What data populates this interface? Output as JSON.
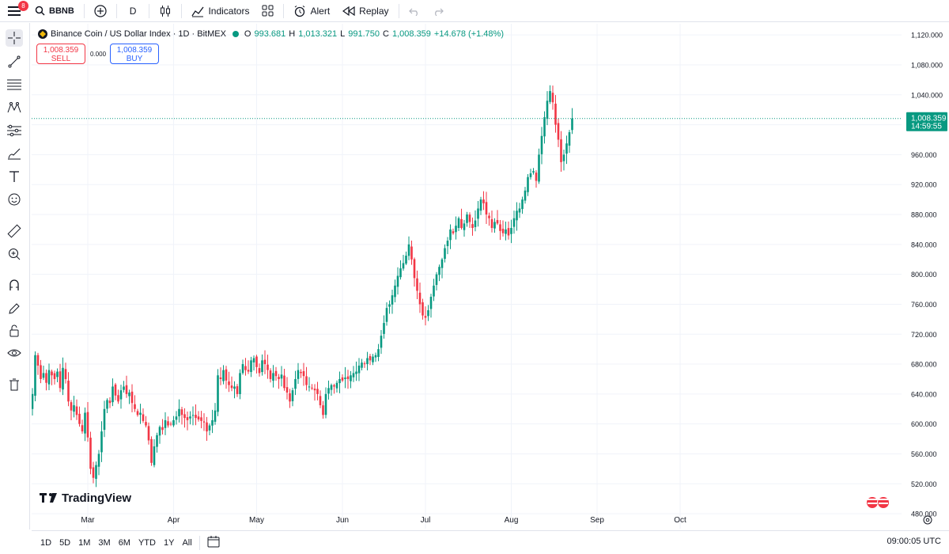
{
  "topbar": {
    "menu_badge": "8",
    "symbol": "BBNB",
    "interval": "D",
    "indicators_label": "Indicators",
    "alert_label": "Alert",
    "replay_label": "Replay"
  },
  "legend": {
    "title": "Binance Coin / US Dollar Index · 1D · BitMEX",
    "open_label": "O",
    "open": "993.681",
    "high_label": "H",
    "high": "1,013.321",
    "low_label": "L",
    "low": "991.750",
    "close_label": "C",
    "close": "1,008.359",
    "change": "+14.678 (+1.48%)"
  },
  "trade": {
    "sell_price": "1,008.359",
    "sell_label": "SELL",
    "spread": "0.000",
    "buy_price": "1,008.359",
    "buy_label": "BUY"
  },
  "price_tag": {
    "price": "1,008.359",
    "countdown": "14:59:55",
    "color": "#089981"
  },
  "watermark": "TradingView",
  "bottombar": {
    "ranges": [
      "1D",
      "5D",
      "1M",
      "3M",
      "6M",
      "YTD",
      "1Y",
      "All"
    ],
    "time": "09:00:05 UTC"
  },
  "colors": {
    "up": "#089981",
    "down": "#f23645",
    "grid": "#f0f3fa"
  },
  "chart_data": {
    "type": "candlestick",
    "title": "Binance Coin / US Dollar Index · 1D · BitMEX",
    "y_ticks": [
      "1,120.000",
      "1,080.000",
      "1,040.000",
      "1,000.000",
      "960.000",
      "920.000",
      "880.000",
      "840.000",
      "800.000",
      "760.000",
      "720.000",
      "680.000",
      "640.000",
      "600.000",
      "560.000",
      "520.000",
      "480.000"
    ],
    "y_tick_values": [
      1120,
      1080,
      1040,
      1000,
      960,
      920,
      880,
      840,
      800,
      760,
      720,
      680,
      640,
      600,
      560,
      520,
      480
    ],
    "ylim": [
      460,
      1135
    ],
    "x_labels": [
      "Mar",
      "Apr",
      "May",
      "Jun",
      "Jul",
      "Aug",
      "Sep",
      "Oct"
    ],
    "x_label_dates": [
      "2025-03-01",
      "2025-04-01",
      "2025-05-01",
      "2025-06-01",
      "2025-07-01",
      "2025-08-01",
      "2025-09-01",
      "2025-10-01"
    ],
    "first_date": "2025-02-09",
    "last_price": 1008.359,
    "closes": [
      640,
      692,
      678,
      660,
      668,
      655,
      672,
      665,
      660,
      670,
      648,
      675,
      660,
      630,
      618,
      625,
      612,
      600,
      590,
      615,
      582,
      540,
      528,
      545,
      560,
      590,
      620,
      632,
      628,
      650,
      638,
      630,
      645,
      650,
      640,
      642,
      628,
      620,
      612,
      615,
      604,
      598,
      578,
      548,
      570,
      585,
      596,
      592,
      605,
      598,
      600,
      605,
      610,
      620,
      612,
      608,
      605,
      610,
      612,
      608,
      606,
      604,
      602,
      590,
      598,
      605,
      618,
      665,
      660,
      672,
      658,
      652,
      648,
      650,
      640,
      668,
      680,
      672,
      670,
      685,
      688,
      676,
      668,
      685,
      680,
      672,
      660,
      668,
      664,
      660,
      666,
      648,
      642,
      630,
      645,
      660,
      672,
      668,
      664,
      652,
      650,
      648,
      645,
      640,
      625,
      612,
      640,
      648,
      652,
      650,
      655,
      660,
      658,
      662,
      660,
      665,
      668,
      670,
      678,
      682,
      680,
      688,
      685,
      690,
      692,
      700,
      718,
      735,
      755,
      760,
      772,
      785,
      798,
      808,
      815,
      825,
      840,
      820,
      795,
      778,
      760,
      745,
      742,
      752,
      770,
      785,
      800,
      810,
      820,
      835,
      845,
      860,
      855,
      865,
      875,
      862,
      868,
      880,
      870,
      862,
      872,
      888,
      900,
      895,
      880,
      875,
      862,
      870,
      868,
      858,
      855,
      860,
      852,
      862,
      875,
      885,
      888,
      900,
      912,
      930,
      935,
      938,
      925,
      960,
      985,
      1010,
      1032,
      1045,
      1030,
      1000,
      980,
      950,
      960,
      975,
      990,
      1008.359
    ],
    "series": [
      {
        "name": "BNBUSD",
        "ohlc_note": "daily candles, values as closes"
      }
    ]
  }
}
